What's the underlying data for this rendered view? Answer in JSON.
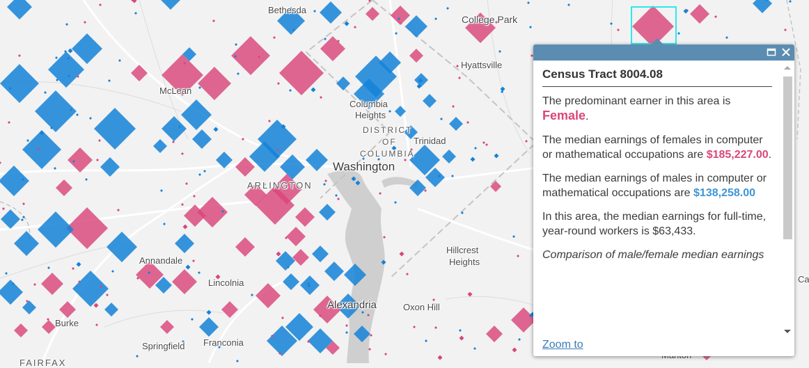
{
  "map": {
    "colors": {
      "female": "#d9467a",
      "male": "#1482d8",
      "land": "#f2f2f2",
      "water": "#cfcfcf",
      "road": "#ffffff",
      "selection": "#2ee6ee"
    },
    "labels": {
      "bethesda": "Bethesda",
      "college_park": "College Park",
      "hyattsville": "Hyattsville",
      "mclean": "McLean",
      "columbia": "Columbia",
      "heights": "Heights",
      "district": "DISTRICT",
      "of": "OF",
      "columbia_caps": "COLUMBIA",
      "trinidad": "Trinidad",
      "washington": "Washington",
      "arlington": "ARLINGTON",
      "hillcrest": "Hillcrest",
      "hillcrest_heights": "Heights",
      "annandale": "Annandale",
      "lincolnia": "Lincolnia",
      "alexandria": "Alexandria",
      "oxon_hill": "Oxon Hill",
      "burke": "Burke",
      "springfield": "Springfield",
      "franconia": "Franconia",
      "fairfax": "FAIRFAX",
      "marlton": "Marlton",
      "ca": "Ca"
    }
  },
  "popup": {
    "title": "Census Tract 8004.08",
    "intro_text": "The predominant earner in this area is",
    "predominant": "Female",
    "period": ".",
    "female_text": "The median earnings of females in computer or mathematical occupations are",
    "female_value": "$185,227.00",
    "male_text": "The median earnings of males in computer or mathematical occupations are",
    "male_value": "$138,258.00",
    "overall_text": "In this area, the median earnings for full-time, year-round workers is $63,433.",
    "comparison_text": "Comparison of male/female median earnings",
    "zoom_label": "Zoom to"
  }
}
